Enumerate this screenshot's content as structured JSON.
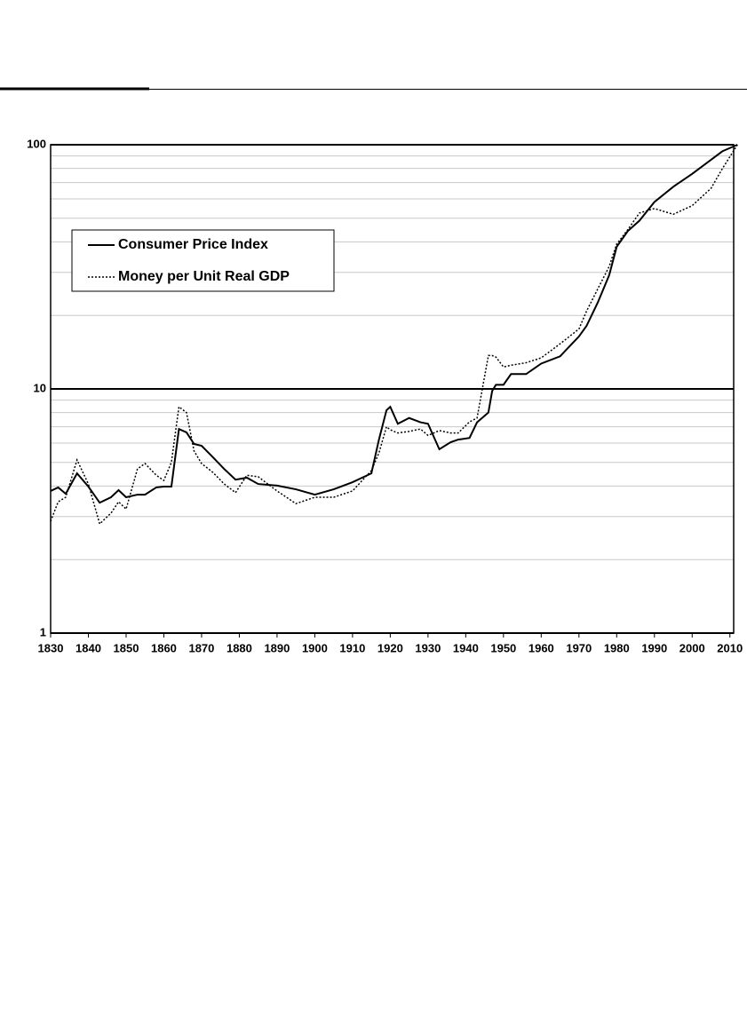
{
  "chart_data": {
    "type": "line",
    "log_y": true,
    "grid": true,
    "legend": "upper left",
    "xlim": [
      1830,
      2011
    ],
    "xticks": [
      1830,
      1840,
      1850,
      1860,
      1870,
      1880,
      1890,
      1900,
      1910,
      1920,
      1930,
      1940,
      1950,
      1960,
      1970,
      1980,
      1990,
      2000,
      2010
    ],
    "ylim": [
      1,
      100
    ],
    "yticks": [
      1,
      10,
      100
    ],
    "yminorticks": [
      2,
      3,
      4,
      5,
      6,
      7,
      8,
      9,
      20,
      30,
      40,
      50,
      60,
      70,
      80,
      90
    ],
    "x": [
      1830,
      1832,
      1834,
      1837,
      1840,
      1843,
      1846,
      1848,
      1850,
      1853,
      1855,
      1858,
      1860,
      1862,
      1864,
      1866,
      1868,
      1870,
      1873,
      1876,
      1879,
      1882,
      1885,
      1890,
      1895,
      1900,
      1905,
      1910,
      1915,
      1917,
      1919,
      1920,
      1922,
      1925,
      1928,
      1930,
      1933,
      1936,
      1938,
      1941,
      1943,
      1946,
      1947,
      1948,
      1950,
      1952,
      1956,
      1960,
      1965,
      1970,
      1972,
      1975,
      1978,
      1980,
      1983,
      1986,
      1990,
      1995,
      2000,
      2005,
      2008,
      2012
    ],
    "series": [
      {
        "name": "Consumer Price Index",
        "color": "#000000",
        "style": "solid",
        "values": [
          3.82,
          3.95,
          3.72,
          4.51,
          3.98,
          3.42,
          3.6,
          3.85,
          3.6,
          3.69,
          3.69,
          3.95,
          3.98,
          3.98,
          6.85,
          6.64,
          5.95,
          5.85,
          5.25,
          4.7,
          4.25,
          4.33,
          4.08,
          4.02,
          3.88,
          3.69,
          3.88,
          4.15,
          4.51,
          6.2,
          8.18,
          8.45,
          7.2,
          7.6,
          7.3,
          7.2,
          5.66,
          6.05,
          6.2,
          6.3,
          7.3,
          8.0,
          9.8,
          10.4,
          10.4,
          11.5,
          11.5,
          12.7,
          13.6,
          16.4,
          18.1,
          22.6,
          29.2,
          38.2,
          44.4,
          48.8,
          58.3,
          67.3,
          76.0,
          86.8,
          94.0,
          100
        ]
      },
      {
        "name": "Money per Unit Real GDP",
        "color": "#000000",
        "style": "dotted",
        "values": [
          2.87,
          3.45,
          3.6,
          5.12,
          4.08,
          2.8,
          3.1,
          3.45,
          3.22,
          4.7,
          4.95,
          4.43,
          4.22,
          5.0,
          8.45,
          8.0,
          5.57,
          4.95,
          4.55,
          4.08,
          3.76,
          4.43,
          4.37,
          3.82,
          3.39,
          3.6,
          3.6,
          3.82,
          4.63,
          5.47,
          7.0,
          6.8,
          6.6,
          6.7,
          6.85,
          6.45,
          6.75,
          6.6,
          6.6,
          7.33,
          7.6,
          13.7,
          13.7,
          13.5,
          12.3,
          12.5,
          12.8,
          13.4,
          15.3,
          17.6,
          20.8,
          25.7,
          31.7,
          39.2,
          45.0,
          52.5,
          54.8,
          51.9,
          56.3,
          66.3,
          79.8,
          100
        ]
      }
    ]
  }
}
